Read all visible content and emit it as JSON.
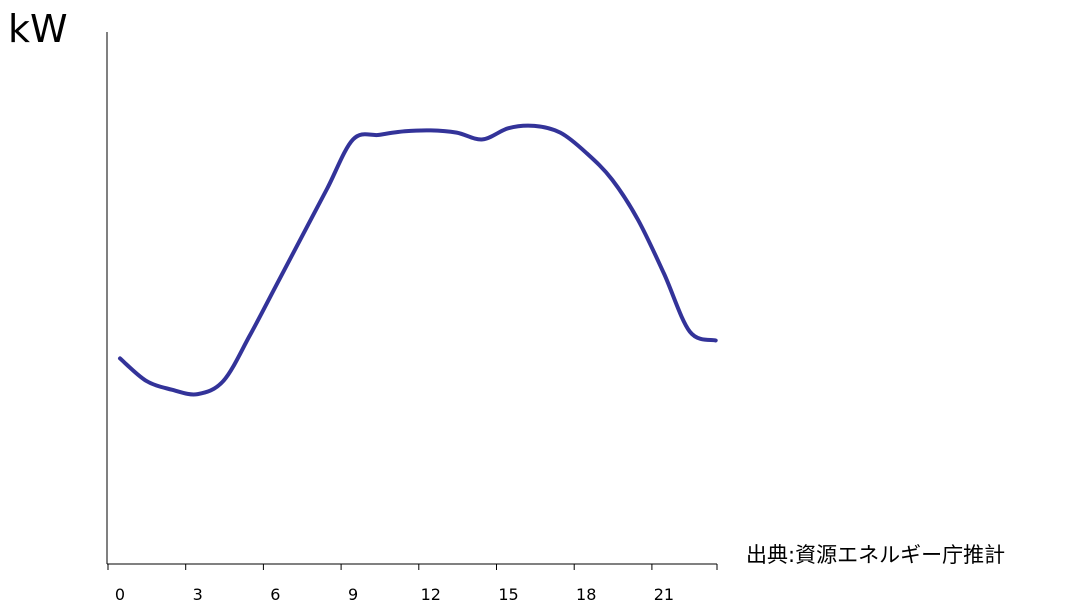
{
  "chart_data": {
    "type": "line",
    "title": "",
    "xlabel": "",
    "ylabel": "kW",
    "x_ticks": [
      0,
      3,
      6,
      9,
      12,
      15,
      18,
      21
    ],
    "xlim": [
      0,
      23.3
    ],
    "ylim": [
      0,
      100
    ],
    "series": [
      {
        "color": "#333399",
        "x": [
          0,
          1,
          2,
          3,
          4,
          5,
          6,
          7,
          8,
          9,
          10,
          11,
          12,
          13,
          14,
          15,
          16,
          17,
          18,
          19,
          20,
          21,
          22,
          23
        ],
        "values": [
          46,
          41,
          39,
          38,
          41,
          51,
          62,
          73,
          84,
          95,
          96,
          96.8,
          97,
          96.5,
          95,
          97.5,
          98,
          96.5,
          92,
          86,
          77,
          65,
          52,
          50
        ]
      }
    ],
    "source_note": "出典:資源エネルギー庁推計",
    "grid": false
  }
}
